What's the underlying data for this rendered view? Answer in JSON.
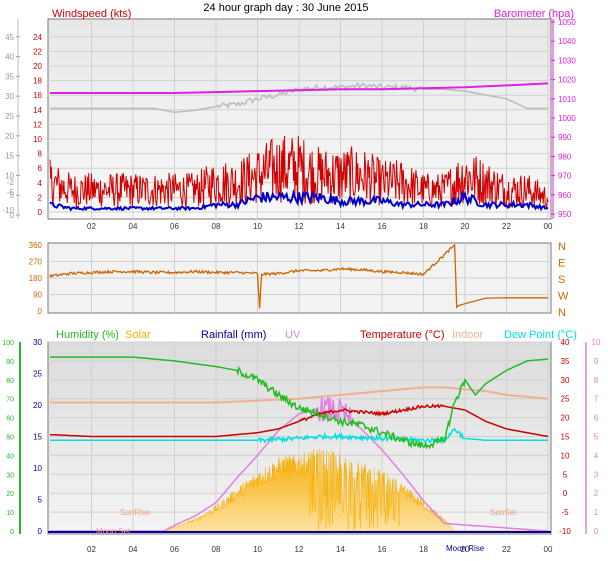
{
  "title": "24 hour graph day : 30 June 2015",
  "colors": {
    "wind": "#d00000",
    "windavg": "#0000cc",
    "baro": "#e020e0",
    "indoortemp": "#bbbbbb",
    "winddir": "#cc6600",
    "humidity": "#22bb22",
    "solar": "#f5b000",
    "rain": "#000099",
    "uv": "#e080e0",
    "temp": "#cc0000",
    "indoor": "#f0b090",
    "dew": "#00e0e0",
    "axisLeft": "#888888"
  },
  "chart_data": [
    {
      "type": "line",
      "panel": "wind-baro",
      "title": "24 hour graph day : 30 June 2015",
      "left_label": "Windspeed (kts)",
      "right_label": "Barometer (hpa)",
      "x_ticks": [
        "02",
        "04",
        "06",
        "08",
        "10",
        "12",
        "14",
        "16",
        "18",
        "20",
        "22",
        "00"
      ],
      "left_ticks_outer": [
        "0",
        "5",
        "10",
        "15",
        "20",
        "25",
        "30",
        "35",
        "40",
        "45"
      ],
      "left_ticks_inner": [
        "0",
        "2",
        "4",
        "6",
        "8",
        "10",
        "12",
        "14",
        "16",
        "18",
        "20",
        "22",
        "24"
      ],
      "right_ticks": [
        "950",
        "960",
        "970",
        "980",
        "990",
        "1000",
        "1010",
        "1020",
        "1030",
        "1040",
        "1050"
      ],
      "ylim_wind": [
        0,
        25
      ],
      "ylim_baro": [
        950,
        1050
      ],
      "series": [
        {
          "name": "gust",
          "x": [
            0,
            1,
            2,
            3,
            4,
            5,
            6,
            7,
            8,
            9,
            10,
            11,
            12,
            13,
            14,
            15,
            16,
            17,
            18,
            19,
            20,
            21,
            22,
            23,
            24
          ],
          "values": [
            4,
            3,
            3,
            3,
            3,
            3,
            3,
            3,
            4,
            4,
            5,
            6,
            6,
            5,
            5,
            5,
            4,
            4,
            3,
            3,
            5,
            4,
            3,
            3,
            2
          ]
        },
        {
          "name": "avg",
          "x": [
            0,
            1,
            2,
            3,
            4,
            5,
            6,
            7,
            8,
            9,
            10,
            11,
            12,
            13,
            14,
            15,
            16,
            17,
            18,
            19,
            20,
            21,
            22,
            23,
            24
          ],
          "values": [
            1,
            0.5,
            0.5,
            0.5,
            0.5,
            0.5,
            0.5,
            0.5,
            1,
            1,
            2,
            2,
            2,
            2,
            1.5,
            1.5,
            1.5,
            1,
            1,
            1,
            2,
            1,
            1,
            1,
            0.5
          ]
        },
        {
          "name": "barometer",
          "x": [
            0,
            2,
            4,
            6,
            8,
            10,
            12,
            14,
            16,
            18,
            20,
            22,
            24
          ],
          "values": [
            1013,
            1013,
            1013,
            1013,
            1013.5,
            1014,
            1014.5,
            1015,
            1015,
            1015.5,
            1016,
            1017,
            1018
          ]
        },
        {
          "name": "indoor",
          "x": [
            0,
            3,
            5,
            6,
            7,
            8,
            9,
            10,
            11,
            12,
            13,
            14,
            15,
            16,
            17,
            18,
            19,
            20,
            21,
            22,
            23,
            24
          ],
          "values": [
            1005,
            1005,
            1005,
            1003,
            1004,
            1006,
            1007,
            1010,
            1012,
            1015,
            1016,
            1016,
            1017,
            1016,
            1016,
            1015,
            1015,
            1014,
            1012,
            1010,
            1005,
            1005
          ]
        }
      ]
    },
    {
      "type": "line",
      "panel": "wind-direction",
      "left_ticks": [
        "0",
        "90",
        "180",
        "270",
        "360"
      ],
      "right_ticks": [
        "N",
        "W",
        "S",
        "E",
        "N"
      ],
      "ylim": [
        0,
        360
      ],
      "series": [
        {
          "name": "direction",
          "x": [
            0,
            1,
            2,
            3,
            4,
            5,
            6,
            7,
            8,
            9,
            10,
            10.1,
            10.2,
            11,
            12,
            13,
            14,
            15,
            16,
            17,
            18,
            19.5,
            19.6,
            19.7,
            20,
            21,
            22,
            23,
            24
          ],
          "values": [
            190,
            205,
            210,
            215,
            215,
            210,
            210,
            215,
            210,
            210,
            205,
            10,
            200,
            205,
            220,
            220,
            230,
            225,
            215,
            210,
            200,
            360,
            20,
            30,
            40,
            70,
            72,
            72,
            72
          ]
        }
      ]
    },
    {
      "type": "line",
      "panel": "temp-humidity-solar",
      "legend": [
        "Humidity (%)",
        "Solar",
        "Rainfall (mm)",
        "UV",
        "Temperature (°C)",
        "Indoor",
        "Dew Point (°C)"
      ],
      "x_ticks": [
        "02",
        "04",
        "06",
        "08",
        "10",
        "12",
        "14",
        "16",
        "18",
        "20",
        "22",
        "00"
      ],
      "humidity_ticks": [
        "0",
        "10",
        "20",
        "30",
        "40",
        "50",
        "60",
        "70",
        "80",
        "90",
        "100"
      ],
      "rain_ticks": [
        "0",
        "5",
        "10",
        "15",
        "20",
        "25",
        "30"
      ],
      "temp_ticks": [
        "-10",
        "-5",
        "0",
        "5",
        "10",
        "15",
        "20",
        "25",
        "30",
        "35",
        "40"
      ],
      "uv_ticks": [
        "0",
        "1",
        "2",
        "3",
        "4",
        "5",
        "6",
        "7",
        "8",
        "9",
        "10"
      ],
      "annotations": [
        "SunRise",
        "Moon Set",
        "SunSet",
        "Moon Rise"
      ],
      "ylim_temp": [
        -10,
        40
      ],
      "ylim_humidity": [
        0,
        100
      ],
      "series": [
        {
          "name": "humidity",
          "x": [
            0,
            2,
            4,
            6,
            8,
            9,
            10,
            11,
            12,
            13,
            14,
            15,
            16,
            17,
            18,
            19,
            19.5,
            20,
            20.5,
            21,
            22,
            23,
            24
          ],
          "values": [
            92,
            92,
            92,
            90,
            87,
            85,
            80,
            72,
            65,
            62,
            58,
            56,
            52,
            48,
            45,
            48,
            68,
            80,
            72,
            78,
            85,
            90,
            91
          ]
        },
        {
          "name": "temperature",
          "x": [
            0,
            2,
            4,
            6,
            8,
            10,
            11,
            12,
            13,
            14,
            15,
            16,
            17,
            18,
            19,
            20,
            21,
            22,
            23,
            24
          ],
          "values": [
            15.5,
            15,
            15,
            15,
            15,
            16,
            17,
            19,
            21,
            22,
            21.5,
            21,
            22,
            23,
            23,
            22,
            19,
            17,
            16,
            15
          ]
        },
        {
          "name": "indoor",
          "x": [
            0,
            2,
            4,
            6,
            8,
            10,
            12,
            14,
            16,
            18,
            19,
            20,
            21,
            22,
            24
          ],
          "values": [
            24,
            24,
            24,
            24,
            24,
            24.5,
            25,
            26,
            27,
            28,
            28,
            27.5,
            27,
            26,
            25
          ]
        },
        {
          "name": "dewpoint",
          "x": [
            0,
            2,
            4,
            6,
            8,
            10,
            12,
            13,
            14,
            16,
            18,
            19,
            19.5,
            20,
            21,
            22,
            23,
            24
          ],
          "values": [
            14,
            14,
            14,
            14,
            14,
            14,
            14.5,
            15,
            15,
            14.5,
            14,
            14,
            17,
            14.5,
            14,
            14,
            14,
            14
          ]
        },
        {
          "name": "solar",
          "x": [
            0,
            5.5,
            6,
            7,
            8,
            9,
            10,
            11,
            12,
            13,
            14,
            15,
            16,
            17,
            18,
            19,
            19.5,
            24
          ],
          "values": [
            0,
            0,
            1,
            3,
            6,
            10,
            14,
            17,
            18,
            19,
            18,
            16,
            14,
            11,
            7,
            3,
            0,
            0
          ]
        },
        {
          "name": "uv",
          "x": [
            0,
            5.5,
            6,
            7,
            8,
            9,
            10,
            11,
            12,
            13,
            14,
            15,
            16,
            17,
            18,
            19,
            24
          ],
          "values": [
            0,
            0,
            0.3,
            0.8,
            1.5,
            2.8,
            4,
            5.3,
            6.2,
            6.5,
            6.3,
            5.4,
            4.3,
            3,
            1.6,
            0.4,
            0
          ]
        }
      ]
    }
  ]
}
